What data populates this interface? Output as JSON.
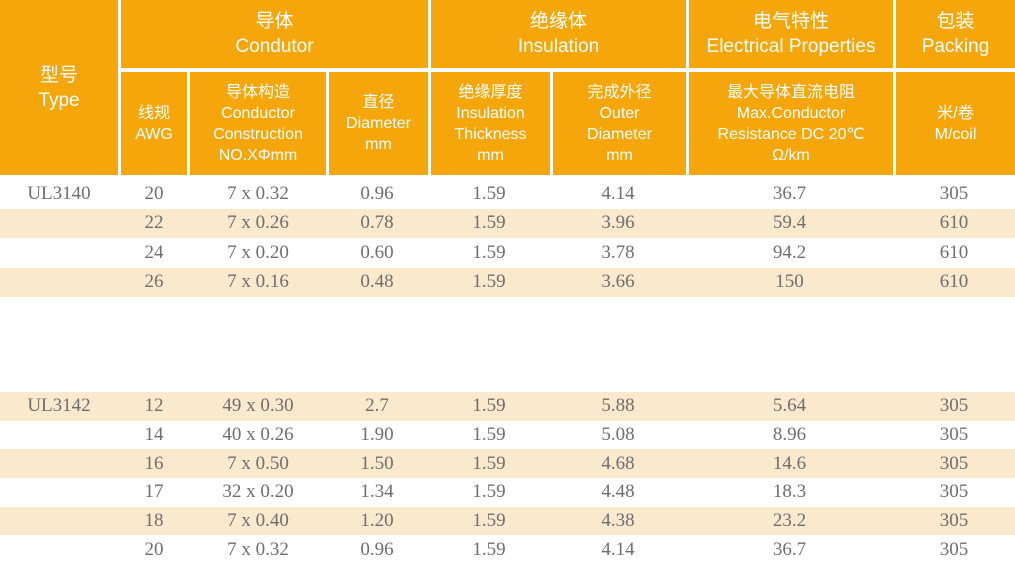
{
  "colors": {
    "header_bg": "#F5A60B",
    "row_shaded_bg": "#FBE9CE",
    "row_plain_bg": "#FFFFFF",
    "header_text": "#FFFFFF",
    "data_text": "#6E6E6E"
  },
  "header": {
    "type_col": "型号\nType",
    "groups": [
      {
        "title": "导体\nCondutor",
        "subs": [
          "线规\nAWG",
          "导体构造\nConductor\nConstruction\nNO.XΦmm",
          "直径\nDiameter\nmm"
        ]
      },
      {
        "title": "绝缘体\nInsulation",
        "subs": [
          "绝缘厚度\nInsulation\nThickness\nmm",
          "完成外径\nOuter\nDiameter\nmm"
        ]
      },
      {
        "title": "电气特性\nElectrical Properties",
        "subs": [
          "最大导体直流电阻\nMax.Conductor\nResistance DC 20℃\nΩ/km"
        ]
      },
      {
        "title": "包装\nPacking",
        "subs": [
          "米/卷\nM/coil"
        ]
      }
    ]
  },
  "rows": [
    {
      "type": "UL3140",
      "awg": "20",
      "construction": "7 x 0.32",
      "diameter": "0.96",
      "thickness": "1.59",
      "outer": "4.14",
      "resistance": "36.7",
      "packing": "305"
    },
    {
      "type": "",
      "awg": "22",
      "construction": "7 x 0.26",
      "diameter": "0.78",
      "thickness": "1.59",
      "outer": "3.96",
      "resistance": "59.4",
      "packing": "610"
    },
    {
      "type": "",
      "awg": "24",
      "construction": "7 x 0.20",
      "diameter": "0.60",
      "thickness": "1.59",
      "outer": "3.78",
      "resistance": "94.2",
      "packing": "610"
    },
    {
      "type": "",
      "awg": "26",
      "construction": "7 x 0.16",
      "diameter": "0.48",
      "thickness": "1.59",
      "outer": "3.66",
      "resistance": "150",
      "packing": "610"
    },
    {
      "type": "UL3142",
      "awg": "12",
      "construction": "49 x 0.30",
      "diameter": "2.7",
      "thickness": "1.59",
      "outer": "5.88",
      "resistance": "5.64",
      "packing": "305"
    },
    {
      "type": "",
      "awg": "14",
      "construction": "40 x 0.26",
      "diameter": "1.90",
      "thickness": "1.59",
      "outer": "5.08",
      "resistance": "8.96",
      "packing": "305"
    },
    {
      "type": "",
      "awg": "16",
      "construction": "7 x 0.50",
      "diameter": "1.50",
      "thickness": "1.59",
      "outer": "4.68",
      "resistance": "14.6",
      "packing": "305"
    },
    {
      "type": "",
      "awg": "17",
      "construction": "32 x 0.20",
      "diameter": "1.34",
      "thickness": "1.59",
      "outer": "4.48",
      "resistance": "18.3",
      "packing": "305"
    },
    {
      "type": "",
      "awg": "18",
      "construction": "7 x 0.40",
      "diameter": "1.20",
      "thickness": "1.59",
      "outer": "4.38",
      "resistance": "23.2",
      "packing": "305"
    },
    {
      "type": "",
      "awg": "20",
      "construction": "7 x 0.32",
      "diameter": "0.96",
      "thickness": "1.59",
      "outer": "4.14",
      "resistance": "36.7",
      "packing": "305"
    }
  ]
}
